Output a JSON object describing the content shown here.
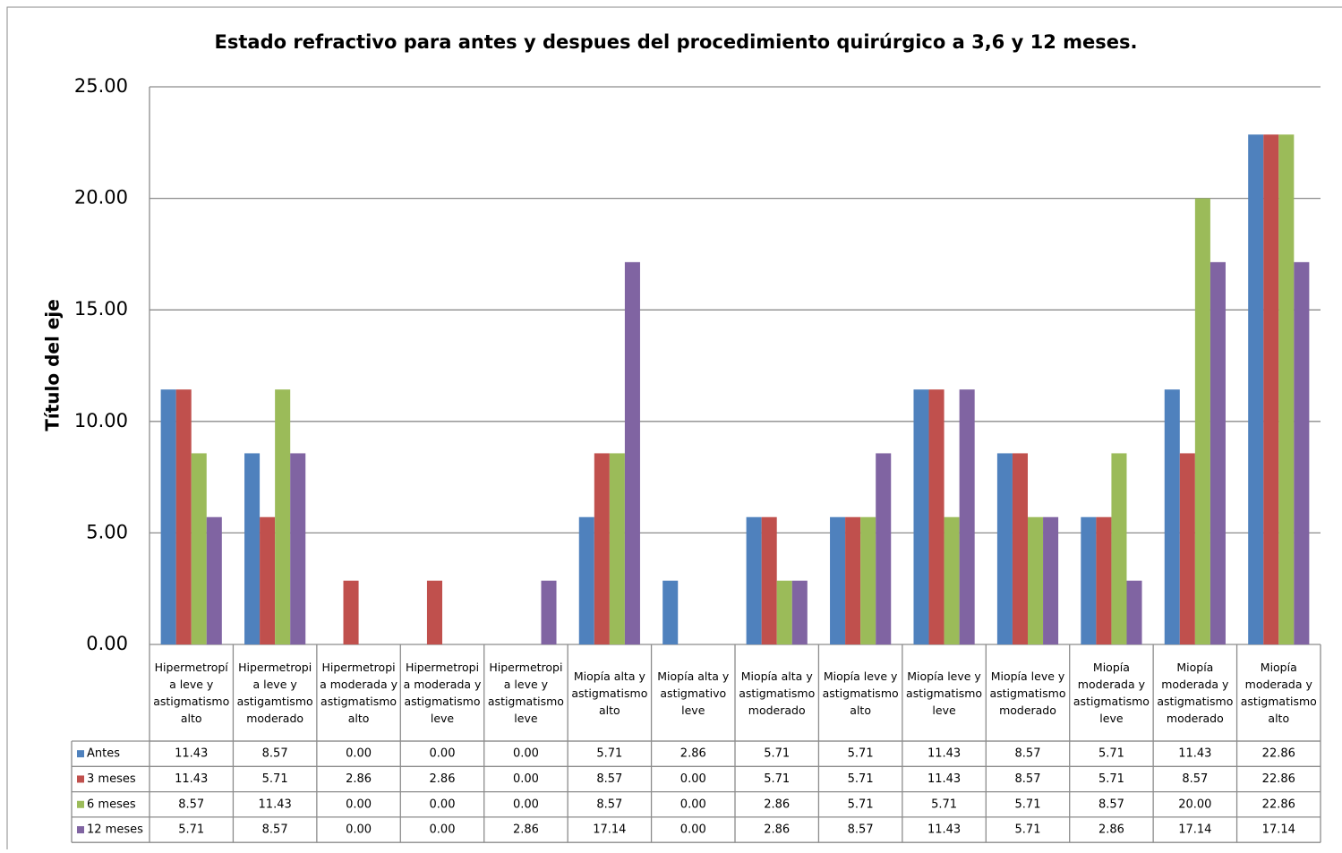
{
  "chart_data": {
    "type": "bar",
    "title": "Estado refractivo para antes y despues del procedimiento quirúrgico a 3,6 y 12 meses.",
    "y_label": "Título del eje",
    "categories": [
      "Hipermetropía leve y astigmatismo alto",
      "Hipermetropia leve y astigamtismo moderado",
      "Hipermetropia moderada y astigmatismo alto",
      "Hipermetropia moderada y astigmatismo leve",
      "Hipermetropia leve y astigmatismo leve",
      "Miopía alta y astigmatismo alto",
      "Miopía alta y astigmativo leve",
      "Miopía alta y astigmatismo moderado",
      "Miopía leve y astigmatismo alto",
      "Miopía leve y astigmatismo leve",
      "Miopía leve y astigmatismo moderado",
      "Miopía moderada y astigmatismo leve",
      "Miopía moderada y astigmatismo moderado",
      "Miopía moderada y astigmatismo alto"
    ],
    "series": [
      {
        "name": "Antes",
        "color": "#4f81bd",
        "values": [
          11.43,
          8.57,
          0,
          0,
          0,
          5.71,
          2.86,
          5.71,
          5.71,
          11.43,
          8.57,
          5.71,
          11.43,
          22.86
        ],
        "value_labels": [
          "11.43",
          "8.57",
          "0.00",
          "0.00",
          "0.00",
          "5.71",
          "2.86",
          "5.71",
          "5.71",
          "11.43",
          "8.57",
          "5.71",
          "11.43",
          "22.86"
        ]
      },
      {
        "name": "3 meses",
        "color": "#c0504d",
        "values": [
          11.43,
          5.71,
          2.86,
          2.86,
          0,
          8.57,
          0,
          5.71,
          5.71,
          11.43,
          8.57,
          5.71,
          8.57,
          22.86
        ],
        "value_labels": [
          "11.43",
          "5.71",
          "2.86",
          "2.86",
          "0.00",
          "8.57",
          "0.00",
          "5.71",
          "5.71",
          "11.43",
          "8.57",
          "5.71",
          "8.57",
          "22.86"
        ]
      },
      {
        "name": "6 meses",
        "color": "#9bbb59",
        "values": [
          8.57,
          11.43,
          0,
          0,
          0,
          8.57,
          0,
          2.86,
          5.71,
          5.71,
          5.71,
          8.57,
          20,
          22.86
        ],
        "value_labels": [
          "8.57",
          "11.43",
          "0.00",
          "0.00",
          "0.00",
          "8.57",
          "0.00",
          "2.86",
          "5.71",
          "5.71",
          "5.71",
          "8.57",
          "20.00",
          "22.86"
        ]
      },
      {
        "name": "12 meses",
        "color": "#8064a2",
        "values": [
          5.71,
          8.57,
          0,
          0,
          2.86,
          17.14,
          0,
          2.86,
          8.57,
          11.43,
          5.71,
          2.86,
          17.14,
          17.14
        ],
        "value_labels": [
          "5.71",
          "8.57",
          "0.00",
          "0.00",
          "2.86",
          "17.14",
          "0.00",
          "2.86",
          "8.57",
          "11.43",
          "5.71",
          "2.86",
          "17.14",
          "17.14"
        ]
      }
    ],
    "ylim": [
      0,
      25
    ],
    "yticks": [
      {
        "value": 0,
        "label": "0.00"
      },
      {
        "value": 5,
        "label": "5.00"
      },
      {
        "value": 10,
        "label": "10.00"
      },
      {
        "value": 15,
        "label": "15.00"
      },
      {
        "value": 20,
        "label": "20.00"
      },
      {
        "value": 25,
        "label": "25.00"
      }
    ],
    "grid": true
  }
}
